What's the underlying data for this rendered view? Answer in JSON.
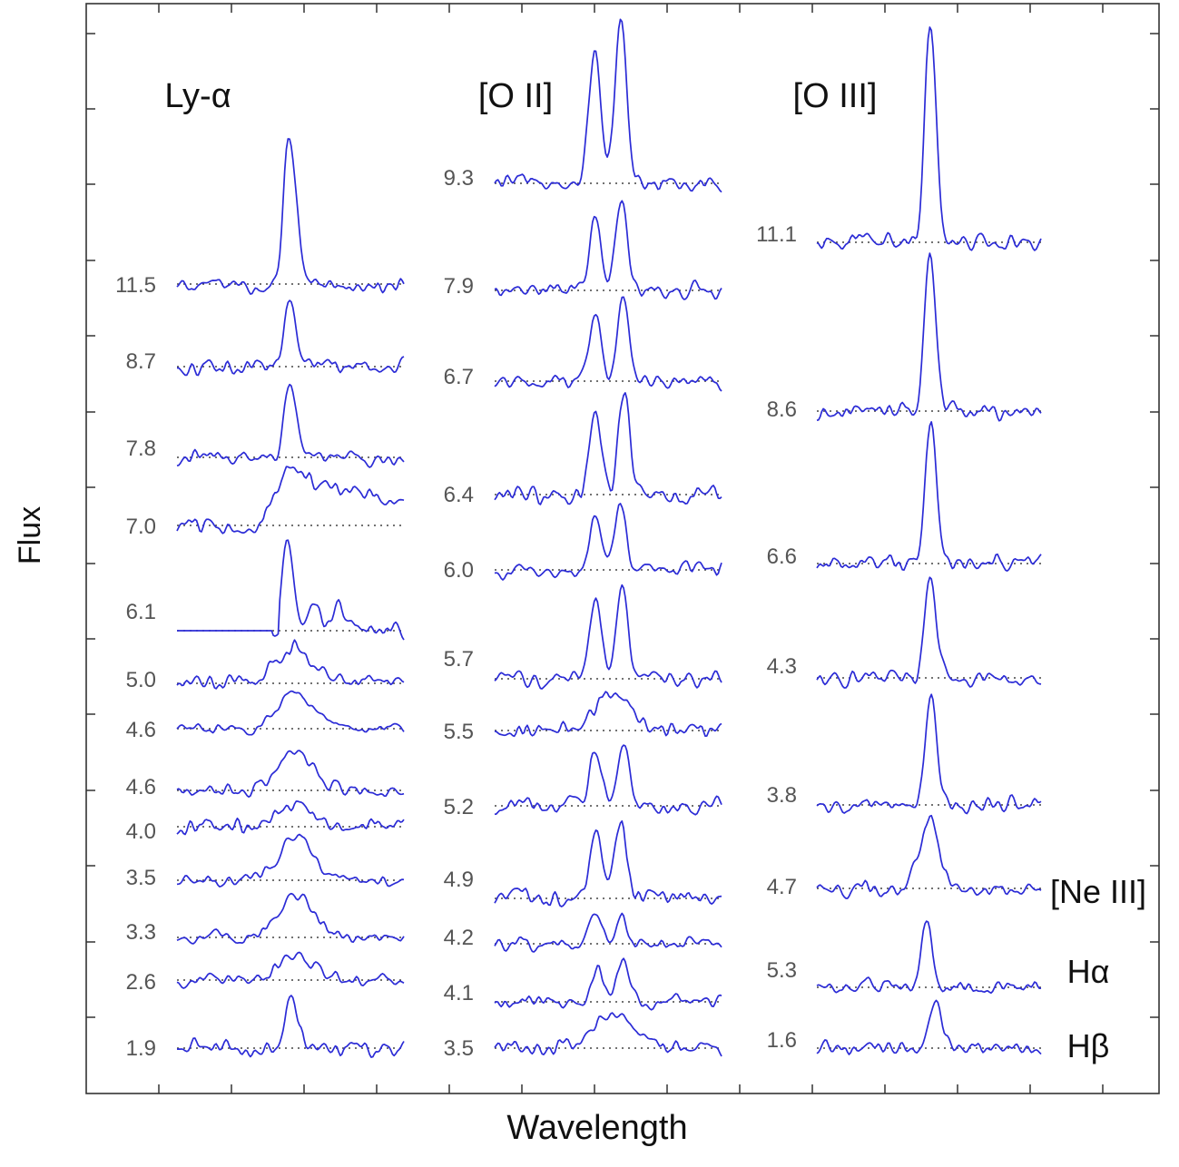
{
  "chart_data": {
    "type": "line",
    "title": "",
    "xlabel": "Wavelength",
    "ylabel": "Flux",
    "grid": false,
    "colors": {
      "spectrum": "#2b2bd6",
      "baseline": "#444444",
      "axis": "#333333",
      "snr_label": "#555555",
      "line_label": "#111111"
    },
    "panels": [
      {
        "name": "Ly-α",
        "spectra": [
          {
            "label": "11.5"
          },
          {
            "label": "8.7"
          },
          {
            "label": "7.8"
          },
          {
            "label": "7.0"
          },
          {
            "label": "6.1"
          },
          {
            "label": "5.0"
          },
          {
            "label": "4.6"
          },
          {
            "label": "4.6"
          },
          {
            "label": "4.0"
          },
          {
            "label": "3.5"
          },
          {
            "label": "3.3"
          },
          {
            "label": "2.6"
          },
          {
            "label": "1.9"
          }
        ]
      },
      {
        "name": "[O II]",
        "spectra": [
          {
            "label": "9.3"
          },
          {
            "label": "7.9"
          },
          {
            "label": "6.7"
          },
          {
            "label": "6.4"
          },
          {
            "label": "6.0"
          },
          {
            "label": "5.7"
          },
          {
            "label": "5.5"
          },
          {
            "label": "5.2"
          },
          {
            "label": "4.9"
          },
          {
            "label": "4.2"
          },
          {
            "label": "4.1"
          },
          {
            "label": "3.5"
          }
        ]
      },
      {
        "name": "[O III]",
        "spectra": [
          {
            "label": "11.1"
          },
          {
            "label": "8.6"
          },
          {
            "label": "6.6"
          },
          {
            "label": "4.3"
          },
          {
            "label": "3.8"
          }
        ]
      },
      {
        "name": "[Ne III]",
        "spectra": [
          {
            "label": "4.7"
          }
        ]
      },
      {
        "name": "Hα",
        "spectra": [
          {
            "label": "5.3"
          }
        ]
      },
      {
        "name": "Hβ",
        "spectra": [
          {
            "label": "1.6"
          }
        ]
      }
    ]
  }
}
